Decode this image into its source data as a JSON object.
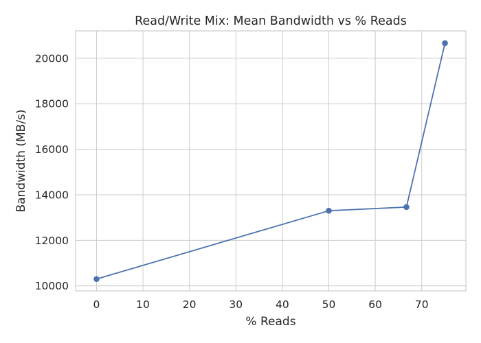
{
  "chart_data": {
    "type": "line",
    "title": "Read/Write Mix: Mean Bandwidth vs % Reads",
    "xlabel": "% Reads",
    "ylabel": "Bandwidth (MB/s)",
    "xlim": [
      -4.5,
      79.5
    ],
    "ylim": [
      9780,
      21200
    ],
    "xticks": [
      0,
      10,
      20,
      30,
      40,
      50,
      60,
      70
    ],
    "yticks": [
      10000,
      12000,
      14000,
      16000,
      18000,
      20000
    ],
    "grid": true,
    "series": [
      {
        "color": "#4c72b0",
        "marker": "circle",
        "points": [
          {
            "x": 0,
            "y": 10300
          },
          {
            "x": 50,
            "y": 13300
          },
          {
            "x": 66.7,
            "y": 13460
          },
          {
            "x": 75,
            "y": 20660
          }
        ]
      }
    ]
  }
}
